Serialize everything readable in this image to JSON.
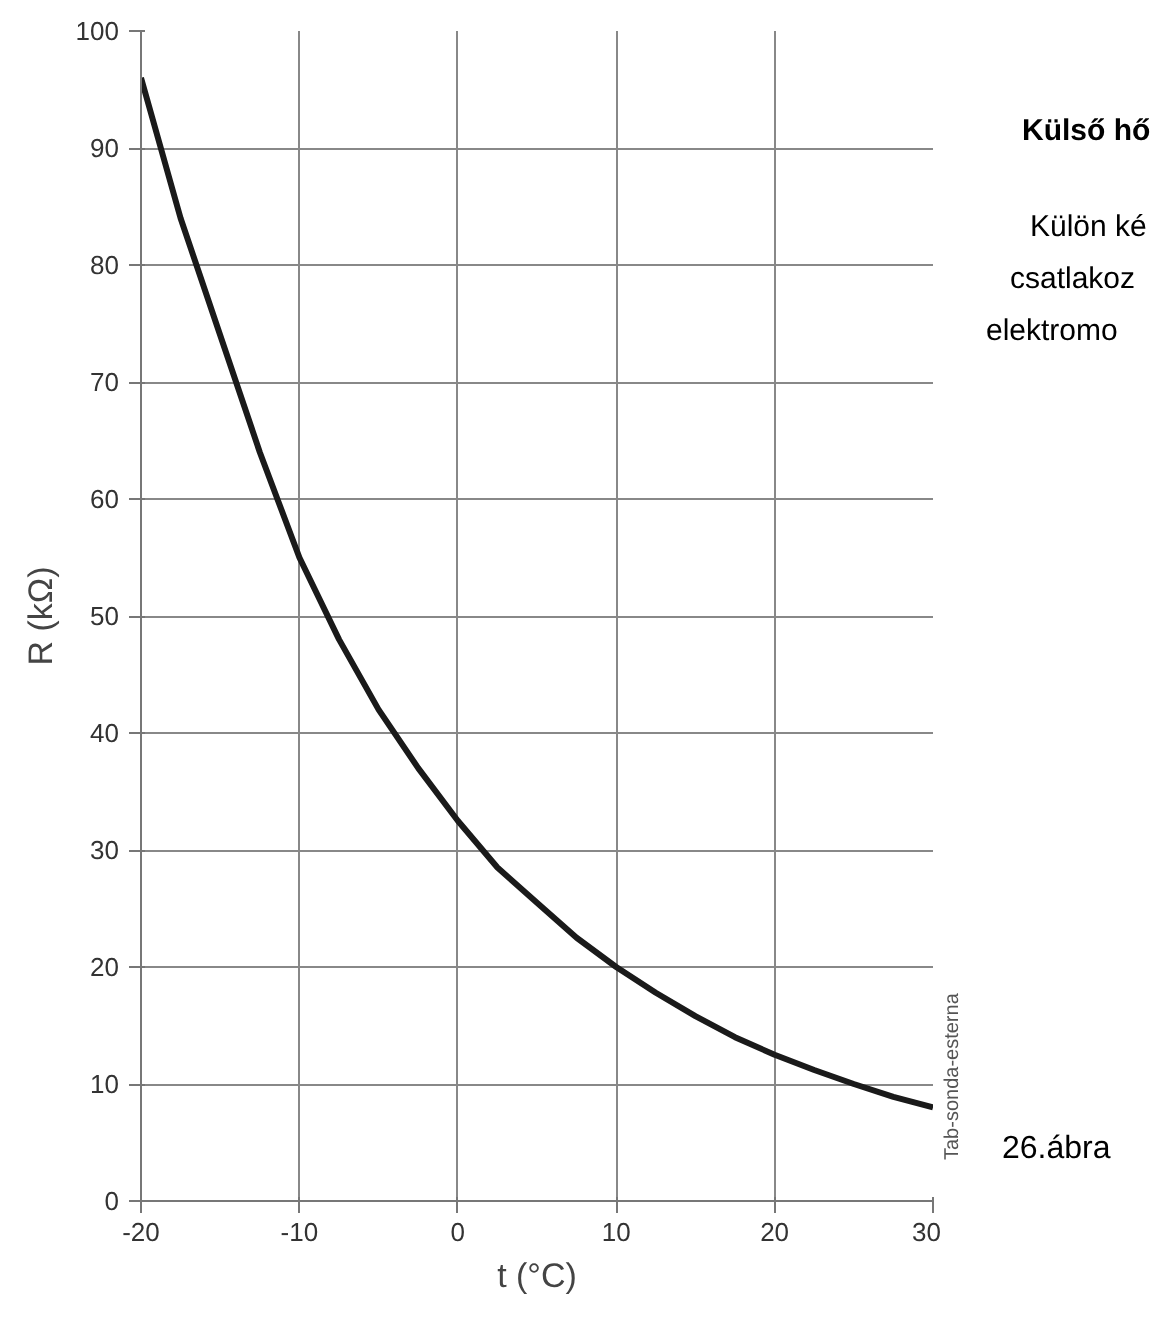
{
  "chart_data": {
    "type": "line",
    "xlabel": "t (°C)",
    "ylabel": "R (kΩ)",
    "x": [
      -20,
      -17.5,
      -15,
      -12.5,
      -10,
      -7.5,
      -5,
      -2.5,
      0,
      2.5,
      5,
      7.5,
      10,
      12.5,
      15,
      17.5,
      20,
      22.5,
      25,
      27.5,
      30
    ],
    "series": [
      {
        "color": "#1a1a1a",
        "values": [
          96,
          84,
          74,
          64,
          55,
          48,
          42,
          37,
          32.5,
          28.5,
          25.5,
          22.5,
          20,
          17.8,
          15.8,
          14,
          12.5,
          11.2,
          10,
          8.9,
          8
        ]
      }
    ],
    "xlim": [
      -20,
      30
    ],
    "xticks": [
      -20,
      -10,
      0,
      10,
      20,
      30
    ],
    "ylim": [
      0,
      100
    ],
    "yticks": [
      0,
      10,
      20,
      30,
      40,
      50,
      60,
      70,
      80,
      90,
      100
    ],
    "grid": true,
    "marker": "none",
    "line_style": "solid",
    "annotations": [
      "Tab-sonda-esterna",
      "Külső hő",
      "Külön ké",
      "csatlakoz",
      "elektromo",
      "26.ábra"
    ]
  }
}
